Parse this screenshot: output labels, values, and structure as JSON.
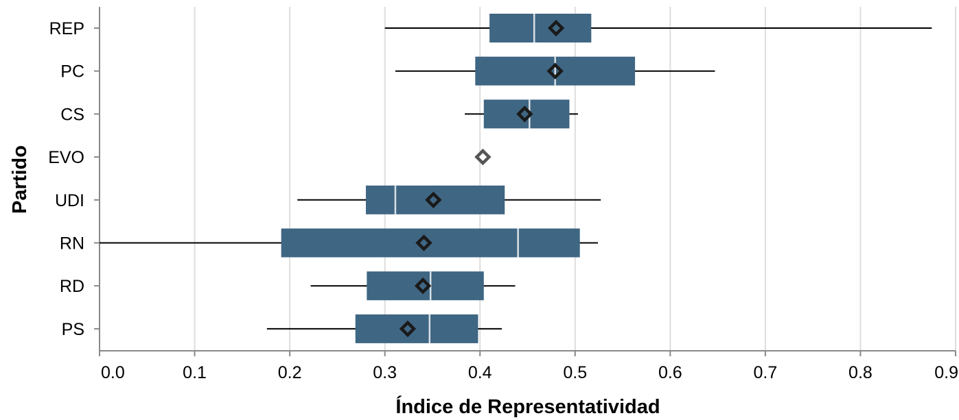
{
  "chart_data": {
    "type": "boxplot",
    "orientation": "horizontal",
    "xlabel": "Índice de Representatividad",
    "ylabel": "Partido",
    "xlim": [
      0.0,
      0.9
    ],
    "x_ticks": [
      "0.0",
      "0.1",
      "0.2",
      "0.3",
      "0.4",
      "0.5",
      "0.6",
      "0.7",
      "0.8",
      "0.9"
    ],
    "grid": "vertical",
    "colors": {
      "box": "#3f6683",
      "median": "#d9e1e7",
      "whisker": "#000000",
      "mean_marker": "#1a1a1a",
      "grid": "#dddddd",
      "axis": "#888888"
    },
    "categories": [
      "REP",
      "PC",
      "CS",
      "EVO",
      "UDI",
      "RN",
      "RD",
      "PS"
    ],
    "boxes": [
      {
        "party": "REP",
        "min": 0.3,
        "q1": 0.41,
        "median": 0.457,
        "q3": 0.517,
        "max": 0.875,
        "mean": 0.48
      },
      {
        "party": "PC",
        "min": 0.311,
        "q1": 0.395,
        "median": 0.479,
        "q3": 0.563,
        "max": 0.647,
        "mean": 0.479
      },
      {
        "party": "CS",
        "min": 0.384,
        "q1": 0.404,
        "median": 0.452,
        "q3": 0.494,
        "max": 0.503,
        "mean": 0.447
      },
      {
        "party": "EVO",
        "min": 0.403,
        "q1": 0.403,
        "median": 0.403,
        "q3": 0.403,
        "max": 0.403,
        "mean": 0.403
      },
      {
        "party": "UDI",
        "min": 0.208,
        "q1": 0.28,
        "median": 0.311,
        "q3": 0.426,
        "max": 0.527,
        "mean": 0.351
      },
      {
        "party": "RN",
        "min": 0.0,
        "q1": 0.191,
        "median": 0.44,
        "q3": 0.505,
        "max": 0.524,
        "mean": 0.341
      },
      {
        "party": "RD",
        "min": 0.222,
        "q1": 0.281,
        "median": 0.348,
        "q3": 0.404,
        "max": 0.437,
        "mean": 0.34
      },
      {
        "party": "PS",
        "min": 0.176,
        "q1": 0.269,
        "median": 0.347,
        "q3": 0.398,
        "max": 0.423,
        "mean": 0.324
      }
    ]
  }
}
